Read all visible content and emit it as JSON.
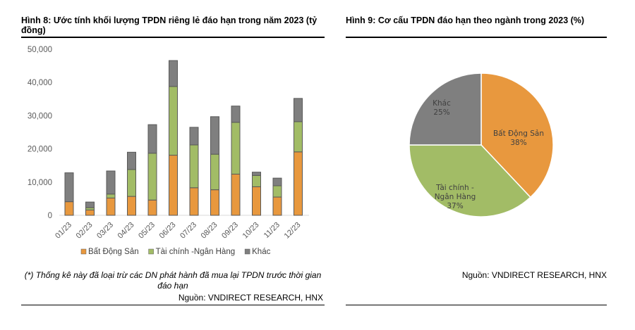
{
  "chart_data": [
    {
      "type": "bar",
      "stacked": true,
      "title": "Hình 8: Ước tính khối lượng TPDN riêng lẻ đáo hạn trong năm 2023 (tỷ đồng)",
      "categories": [
        "01/23",
        "02/23",
        "03/23",
        "04/23",
        "05/23",
        "06/23",
        "07/23",
        "08/23",
        "09/23",
        "10/23",
        "11/23",
        "12/23"
      ],
      "series": [
        {
          "name": "Bất Động Sản",
          "color": "#E8983E",
          "values": [
            4100,
            1600,
            5200,
            5700,
            4600,
            18100,
            8300,
            7700,
            12400,
            8600,
            5500,
            19100
          ]
        },
        {
          "name": "Tài chính -Ngân Hàng",
          "color": "#A2BC66",
          "values": [
            0,
            700,
            1200,
            8100,
            14100,
            20700,
            12900,
            10700,
            15600,
            3400,
            3400,
            9100
          ]
        },
        {
          "name": "Khác",
          "color": "#7F7F7F",
          "values": [
            8700,
            1700,
            6950,
            5200,
            8600,
            7800,
            5300,
            11300,
            4900,
            1000,
            2300,
            7000
          ]
        }
      ],
      "yticks": [
        "0",
        "10,000",
        "20,000",
        "30,000",
        "40,000",
        "50,000"
      ],
      "ylim": [
        0,
        50000
      ],
      "legend": "bottom",
      "grid": false,
      "note": "(*) Thống kê này đã loại trừ các DN phát hành đã mua lại TPDN trước thời gian đáo hạn",
      "source": "Nguồn: VNDIRECT RESEARCH, HNX"
    },
    {
      "type": "pie",
      "title": "Hình 9: Cơ cấu TPDN đáo hạn theo ngành trong 2023 (%)",
      "slices": [
        {
          "label": "Bất Động Sản",
          "value": 38,
          "pct": "38%",
          "color": "#E8983E"
        },
        {
          "label": "Tài chính - Ngân Hàng",
          "value": 37,
          "pct": "37%",
          "color": "#A2BC66"
        },
        {
          "label": "Khác",
          "value": 25,
          "pct": "25%",
          "color": "#7F7F7F"
        }
      ],
      "source": "Nguồn: VNDIRECT RESEARCH, HNX"
    }
  ]
}
